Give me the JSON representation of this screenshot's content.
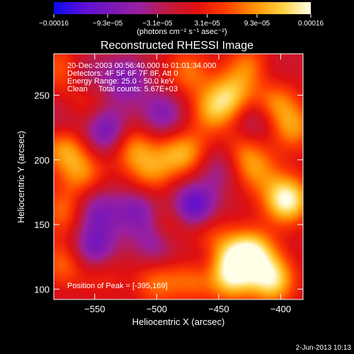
{
  "chart_data": {
    "type": "heatmap",
    "title": "Reconstructed RHESSI Image",
    "xlabel": "Heliocentric X (arcsec)",
    "ylabel": "Heliocentric Y (arcsec)",
    "xlim": [
      -583,
      -382
    ],
    "ylim": [
      92,
      282
    ],
    "x_ticks": [
      -550,
      -500,
      -450,
      -400
    ],
    "x_tick_labels": [
      "−550",
      "−500",
      "−450",
      "−400"
    ],
    "y_ticks": [
      100,
      150,
      200,
      250
    ],
    "y_tick_labels": [
      "100",
      "150",
      "200",
      "250"
    ],
    "colorbar": {
      "min": -0.00016,
      "max": 0.00016,
      "ticks": [
        -0.00016,
        -9.3e-05,
        -3.1e-05,
        3.1e-05,
        9.3e-05,
        0.00016
      ],
      "tick_labels": [
        "−0.00016",
        "−9.3e−05",
        "−3.1e−05",
        "3.1e−05",
        "9.3e−05",
        "0.00016"
      ],
      "unit_label": "(photons cm⁻² s⁻¹ asec⁻²)",
      "colors": [
        "#0a0af0",
        "#5a0fd8",
        "#7a18b8",
        "#9a20a0",
        "#c01a40",
        "#e01010",
        "#ff3d00",
        "#ff9000",
        "#ffd040",
        "#ffffe8"
      ]
    },
    "annotations": [
      "20-Dec-2003 00:56:40.000 to 01:01:34.000",
      "Detectors: 4F 5F 6F 7F 8F, Att 0",
      "Energy Range: 25.0 - 50.0 keV",
      "Clean     Total counts: 5.67E+03"
    ],
    "peak_label": "Position of Peak = [-395,169]",
    "peak": [
      -395,
      169
    ],
    "sources": [
      {
        "x": -395,
        "y": 169,
        "v": 1.0
      },
      {
        "x": -407,
        "y": 107,
        "v": 0.85
      },
      {
        "x": -422,
        "y": 128,
        "v": 0.8
      },
      {
        "x": -440,
        "y": 108,
        "v": 0.7
      },
      {
        "x": -470,
        "y": 110,
        "v": 0.65
      },
      {
        "x": -440,
        "y": 125,
        "v": 0.55
      },
      {
        "x": -390,
        "y": 225,
        "v": 0.55
      },
      {
        "x": -405,
        "y": 245,
        "v": 0.55
      },
      {
        "x": -440,
        "y": 250,
        "v": 0.6
      },
      {
        "x": -455,
        "y": 238,
        "v": 0.55
      },
      {
        "x": -425,
        "y": 272,
        "v": 0.5
      },
      {
        "x": -475,
        "y": 268,
        "v": 0.45
      },
      {
        "x": -430,
        "y": 205,
        "v": 0.45
      },
      {
        "x": -418,
        "y": 190,
        "v": 0.4
      },
      {
        "x": -485,
        "y": 205,
        "v": 0.45
      },
      {
        "x": -520,
        "y": 210,
        "v": 0.55
      },
      {
        "x": -505,
        "y": 190,
        "v": 0.45
      },
      {
        "x": -575,
        "y": 210,
        "v": 0.6
      },
      {
        "x": -560,
        "y": 190,
        "v": 0.5
      },
      {
        "x": -575,
        "y": 160,
        "v": 0.45
      },
      {
        "x": -575,
        "y": 270,
        "v": 0.5
      },
      {
        "x": -560,
        "y": 245,
        "v": 0.35
      },
      {
        "x": -575,
        "y": 120,
        "v": 0.45
      },
      {
        "x": -545,
        "y": 115,
        "v": 0.35
      },
      {
        "x": -500,
        "y": 105,
        "v": 0.45
      },
      {
        "x": -490,
        "y": 150,
        "v": 0.4
      },
      {
        "x": -460,
        "y": 145,
        "v": 0.35
      },
      {
        "x": -470,
        "y": 205,
        "v": 0.35
      },
      {
        "x": -465,
        "y": 118,
        "v": -0.45
      },
      {
        "x": -470,
        "y": 163,
        "v": -0.85
      },
      {
        "x": -515,
        "y": 160,
        "v": -0.5
      },
      {
        "x": -550,
        "y": 130,
        "v": -0.7
      },
      {
        "x": -548,
        "y": 160,
        "v": -0.5
      },
      {
        "x": -540,
        "y": 222,
        "v": -0.65
      },
      {
        "x": -560,
        "y": 265,
        "v": -0.4
      },
      {
        "x": -525,
        "y": 262,
        "v": -0.5
      },
      {
        "x": -495,
        "y": 235,
        "v": -0.5
      },
      {
        "x": -450,
        "y": 195,
        "v": -0.4
      },
      {
        "x": -420,
        "y": 230,
        "v": -0.35
      },
      {
        "x": -500,
        "y": 135,
        "v": -0.45
      },
      {
        "x": -575,
        "y": 230,
        "v": -0.3
      },
      {
        "x": -410,
        "y": 265,
        "v": -0.2
      }
    ]
  },
  "footer": {
    "date": "2-Jun-2013 10:13"
  }
}
